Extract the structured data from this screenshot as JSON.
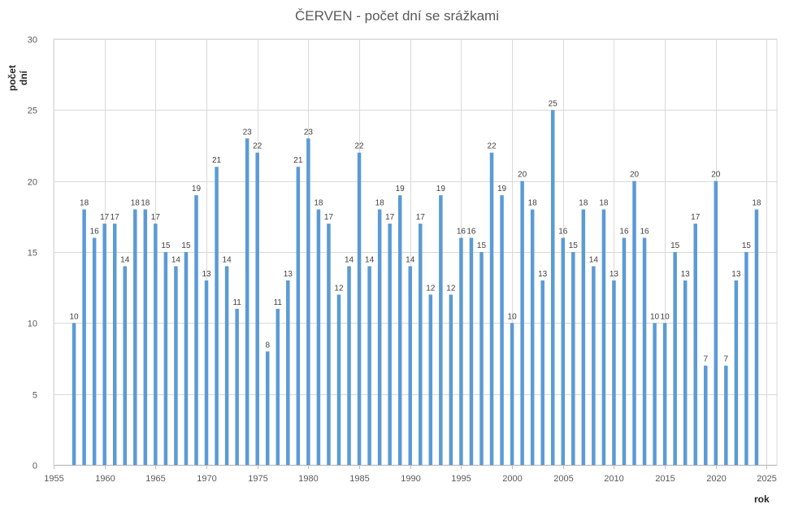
{
  "chart_data": {
    "type": "bar",
    "title": "ČERVEN - počet dní se srážkami",
    "xlabel": "rok",
    "ylabel": "počet dní",
    "xlim": [
      1955,
      2026
    ],
    "ylim": [
      0,
      30
    ],
    "x_ticks": [
      1955,
      1960,
      1965,
      1970,
      1975,
      1980,
      1985,
      1990,
      1995,
      2000,
      2005,
      2010,
      2015,
      2020,
      2025
    ],
    "y_ticks": [
      0,
      5,
      10,
      15,
      20,
      25,
      30
    ],
    "grid": true,
    "legend": false,
    "bar_color": "#5b9bd5",
    "x": [
      1957,
      1958,
      1959,
      1960,
      1961,
      1962,
      1963,
      1964,
      1965,
      1966,
      1967,
      1968,
      1969,
      1970,
      1971,
      1972,
      1973,
      1974,
      1975,
      1976,
      1977,
      1978,
      1979,
      1980,
      1981,
      1982,
      1983,
      1984,
      1985,
      1986,
      1987,
      1988,
      1989,
      1990,
      1991,
      1992,
      1993,
      1994,
      1995,
      1996,
      1997,
      1998,
      1999,
      2000,
      2001,
      2002,
      2003,
      2004,
      2005,
      2006,
      2007,
      2008,
      2009,
      2010,
      2011,
      2012,
      2013,
      2014,
      2015,
      2016,
      2017,
      2018,
      2019,
      2020,
      2021,
      2022,
      2023,
      2024
    ],
    "values": [
      10,
      18,
      16,
      17,
      17,
      14,
      18,
      18,
      17,
      15,
      14,
      15,
      19,
      13,
      21,
      14,
      11,
      23,
      22,
      8,
      11,
      13,
      21,
      23,
      18,
      17,
      12,
      14,
      22,
      14,
      18,
      17,
      19,
      14,
      17,
      12,
      19,
      12,
      16,
      16,
      15,
      22,
      19,
      10,
      20,
      18,
      13,
      25,
      16,
      15,
      18,
      14,
      18,
      13,
      16,
      20,
      16,
      10,
      10,
      15,
      13,
      17,
      7,
      20,
      7,
      13,
      15,
      18
    ]
  }
}
